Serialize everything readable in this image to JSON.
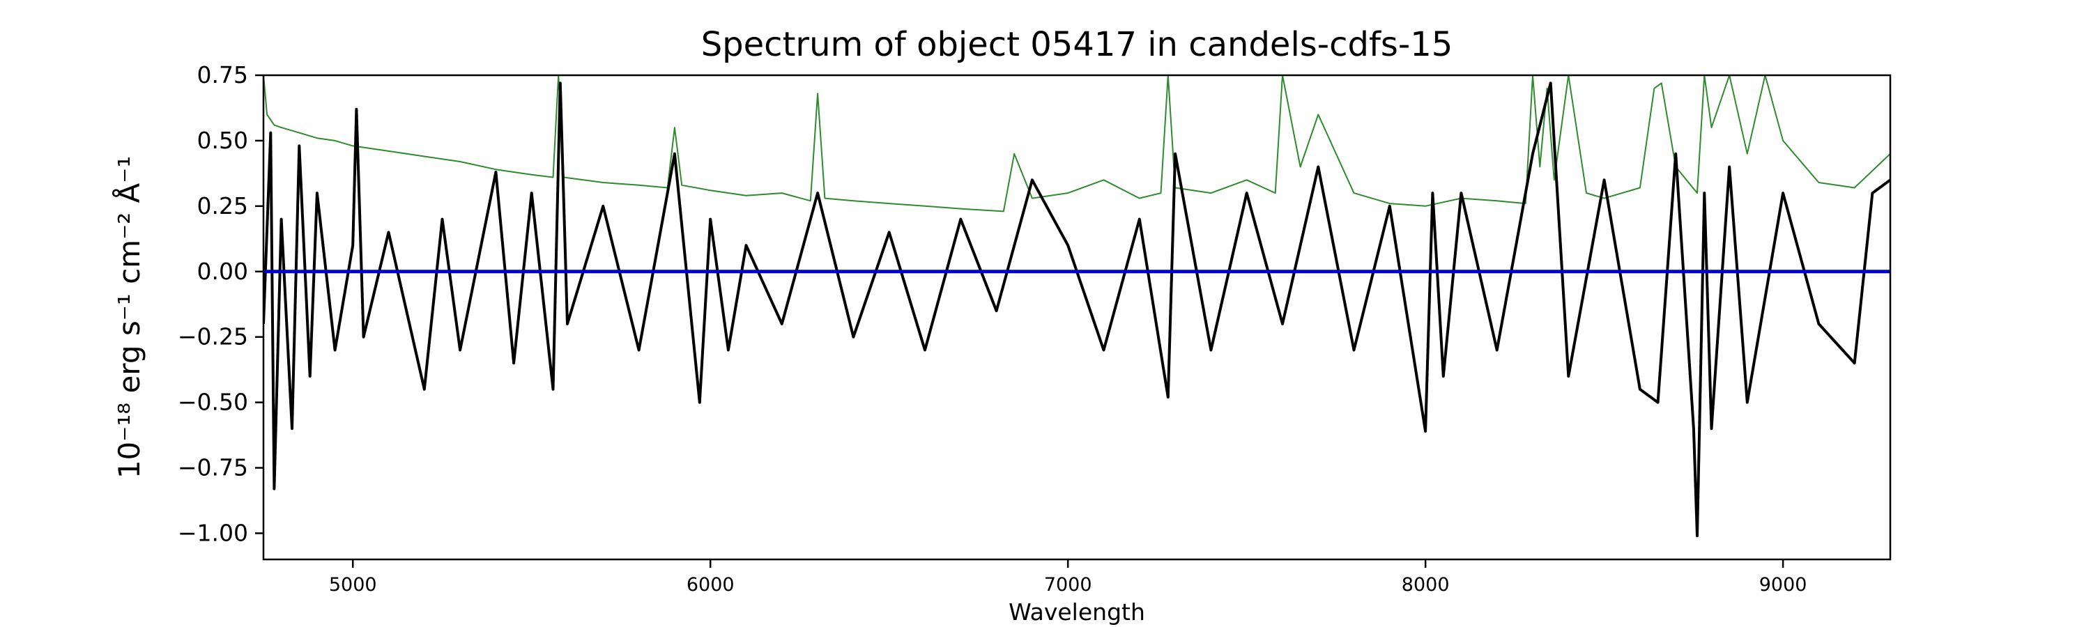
{
  "chart_data": {
    "type": "line",
    "title": "Spectrum of object 05417 in candels-cdfs-15",
    "xlabel": "Wavelength",
    "ylabel": "10⁻¹⁸ erg s⁻¹ cm⁻² Å⁻¹",
    "xlim": [
      4750,
      9300
    ],
    "ylim": [
      -1.1,
      0.75
    ],
    "xticks": [
      5000,
      6000,
      7000,
      8000,
      9000
    ],
    "yticks": [
      0.75,
      0.5,
      0.25,
      0.0,
      -0.25,
      -0.5,
      -0.75,
      -1.0
    ],
    "xtick_labels": [
      "5000",
      "6000",
      "7000",
      "8000",
      "9000"
    ],
    "ytick_labels": [
      "0.75",
      "0.50",
      "0.25",
      "0.00",
      "−0.25",
      "−0.50",
      "−0.75",
      "−1.00"
    ],
    "grid": false,
    "series": [
      {
        "color": "#2e8b2e",
        "x": [
          4750,
          4760,
          4780,
          4800,
          4850,
          4900,
          4950,
          5000,
          5100,
          5200,
          5300,
          5400,
          5500,
          5560,
          5575,
          5590,
          5700,
          5800,
          5880,
          5900,
          5920,
          6000,
          6100,
          6200,
          6280,
          6300,
          6320,
          6400,
          6500,
          6600,
          6700,
          6820,
          6850,
          6900,
          7000,
          7100,
          7200,
          7260,
          7280,
          7300,
          7400,
          7500,
          7580,
          7600,
          7650,
          7700,
          7800,
          7900,
          8000,
          8100,
          8200,
          8280,
          8300,
          8320,
          8340,
          8360,
          8400,
          8450,
          8500,
          8550,
          8600,
          8640,
          8660,
          8700,
          8760,
          8780,
          8800,
          8850,
          8900,
          8950,
          9000,
          9100,
          9200,
          9300
        ],
        "y": [
          0.75,
          0.6,
          0.56,
          0.55,
          0.53,
          0.51,
          0.5,
          0.48,
          0.46,
          0.44,
          0.42,
          0.39,
          0.37,
          0.36,
          0.75,
          0.36,
          0.34,
          0.33,
          0.32,
          0.55,
          0.33,
          0.31,
          0.29,
          0.3,
          0.27,
          0.68,
          0.28,
          0.27,
          0.26,
          0.25,
          0.24,
          0.23,
          0.45,
          0.28,
          0.3,
          0.35,
          0.28,
          0.3,
          0.75,
          0.32,
          0.3,
          0.35,
          0.3,
          0.75,
          0.4,
          0.6,
          0.3,
          0.26,
          0.25,
          0.28,
          0.27,
          0.26,
          0.75,
          0.4,
          0.7,
          0.35,
          0.75,
          0.3,
          0.28,
          0.3,
          0.32,
          0.7,
          0.72,
          0.4,
          0.3,
          0.75,
          0.55,
          0.75,
          0.45,
          0.75,
          0.5,
          0.34,
          0.32,
          0.45
        ]
      },
      {
        "color": "#000000",
        "x": [
          4750,
          4770,
          4780,
          4800,
          4830,
          4850,
          4880,
          4900,
          4950,
          5000,
          5010,
          5030,
          5100,
          5200,
          5250,
          5300,
          5400,
          5450,
          5500,
          5560,
          5580,
          5600,
          5700,
          5800,
          5900,
          5970,
          6000,
          6050,
          6100,
          6200,
          6300,
          6400,
          6500,
          6600,
          6700,
          6800,
          6900,
          7000,
          7100,
          7200,
          7280,
          7300,
          7400,
          7500,
          7600,
          7700,
          7800,
          7900,
          8000,
          8020,
          8050,
          8100,
          8200,
          8300,
          8350,
          8400,
          8500,
          8600,
          8650,
          8700,
          8750,
          8760,
          8780,
          8800,
          8850,
          8900,
          9000,
          9100,
          9200,
          9250,
          9300
        ],
        "y": [
          -0.2,
          0.53,
          -0.83,
          0.2,
          -0.6,
          0.48,
          -0.4,
          0.3,
          -0.3,
          0.1,
          0.62,
          -0.25,
          0.15,
          -0.45,
          0.2,
          -0.3,
          0.38,
          -0.35,
          0.3,
          -0.45,
          0.72,
          -0.2,
          0.25,
          -0.3,
          0.45,
          -0.5,
          0.2,
          -0.3,
          0.1,
          -0.2,
          0.3,
          -0.25,
          0.15,
          -0.3,
          0.2,
          -0.15,
          0.35,
          0.1,
          -0.3,
          0.2,
          -0.48,
          0.45,
          -0.3,
          0.3,
          -0.2,
          0.4,
          -0.3,
          0.25,
          -0.61,
          0.3,
          -0.4,
          0.3,
          -0.3,
          0.45,
          0.72,
          -0.4,
          0.35,
          -0.45,
          -0.5,
          0.45,
          -0.6,
          -1.01,
          0.3,
          -0.6,
          0.4,
          -0.5,
          0.3,
          -0.2,
          -0.35,
          0.3,
          0.35
        ]
      },
      {
        "color": "#0000cc",
        "x": [
          4750,
          9300
        ],
        "y": [
          0.0,
          0.0
        ]
      }
    ]
  }
}
